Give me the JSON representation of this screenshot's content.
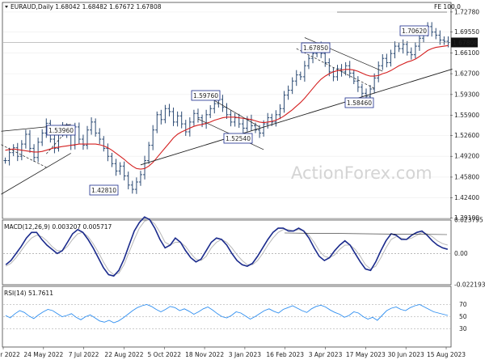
{
  "header": {
    "symbol_line": "EURAUD,Daily  1.68042 1.68482 1.67672 1.67808",
    "macd_label": "MACD(12,26,9) 0.003207 0.005717",
    "rsi_label": "RSI(14) 51.7611",
    "fe_label": "FE 100.0",
    "watermark": "ActionForex.com",
    "current_price": "1.67808"
  },
  "colors": {
    "bars": "#2b4a73",
    "ma": "#d41f1f",
    "macd": "#1a2a8c",
    "signal": "#b8b8b8",
    "rsi": "#2e8ef0",
    "trend": "#1e1e1e",
    "annot": "#1a2a8c",
    "frame": "#444444"
  },
  "chart_data": [
    {
      "type": "line",
      "panel": "price",
      "title": "EURAUD,Daily",
      "ohlc_last": {
        "open": 1.68042,
        "high": 1.68482,
        "low": 1.67672,
        "close": 1.67808
      },
      "ylim": [
        1.3905,
        1.7435
      ],
      "y_ticks": [
        "1.72780",
        "1.69550",
        "1.66100",
        "1.62700",
        "1.59300",
        "1.55900",
        "1.52600",
        "1.49200",
        "1.45800",
        "1.42400",
        "1.39100"
      ],
      "x_ticks": [
        "8 Apr 2022",
        "24 May 2022",
        "7 Jul 2022",
        "22 Aug 2022",
        "5 Oct 2022",
        "18 Nov 2022",
        "3 Jan 2023",
        "16 Feb 2023",
        "3 Apr 2023",
        "17 May 2023",
        "30 Jun 2023",
        "15 Aug 2023"
      ],
      "series": [
        {
          "kind": "ohlc_bars",
          "close": [
            1.485,
            1.498,
            1.506,
            1.492,
            1.512,
            1.528,
            1.505,
            1.49,
            1.515,
            1.53,
            1.546,
            1.52,
            1.505,
            1.532,
            1.54,
            1.528,
            1.51,
            1.54,
            1.52,
            1.51,
            1.535,
            1.548,
            1.53,
            1.52,
            1.505,
            1.492,
            1.48,
            1.468,
            1.476,
            1.46,
            1.445,
            1.438,
            1.45,
            1.462,
            1.485,
            1.51,
            1.535,
            1.56,
            1.552,
            1.57,
            1.565,
            1.548,
            1.558,
            1.545,
            1.532,
            1.548,
            1.562,
            1.555,
            1.545,
            1.56,
            1.57,
            1.578,
            1.585,
            1.572,
            1.56,
            1.548,
            1.555,
            1.545,
            1.538,
            1.552,
            1.542,
            1.535,
            1.53,
            1.545,
            1.555,
            1.548,
            1.56,
            1.57,
            1.592,
            1.6,
            1.615,
            1.625,
            1.622,
            1.64,
            1.652,
            1.66,
            1.672,
            1.66,
            1.645,
            1.63,
            1.622,
            1.635,
            1.63,
            1.64,
            1.628,
            1.615,
            1.605,
            1.595,
            1.59,
            1.602,
            1.62,
            1.64,
            1.652,
            1.645,
            1.66,
            1.672,
            1.668,
            1.675,
            1.662,
            1.658,
            1.672,
            1.685,
            1.695,
            1.704,
            1.695,
            1.69,
            1.682,
            1.68,
            1.678
          ]
        },
        {
          "kind": "moving_average",
          "values": [
            1.502,
            1.503,
            1.504,
            1.503,
            1.502,
            1.501,
            1.5,
            1.499,
            1.499,
            1.5,
            1.502,
            1.504,
            1.506,
            1.507,
            1.508,
            1.509,
            1.51,
            1.511,
            1.512,
            1.512,
            1.512,
            1.512,
            1.512,
            1.511,
            1.509,
            1.506,
            1.502,
            1.497,
            1.492,
            1.487,
            1.481,
            1.476,
            1.472,
            1.471,
            1.472,
            1.476,
            1.482,
            1.49,
            1.498,
            1.506,
            1.514,
            1.522,
            1.528,
            1.532,
            1.535,
            1.538,
            1.541,
            1.543,
            1.544,
            1.546,
            1.548,
            1.551,
            1.553,
            1.555,
            1.556,
            1.556,
            1.556,
            1.555,
            1.554,
            1.553,
            1.552,
            1.55,
            1.548,
            1.547,
            1.548,
            1.549,
            1.551,
            1.554,
            1.558,
            1.563,
            1.568,
            1.574,
            1.58,
            1.587,
            1.595,
            1.603,
            1.611,
            1.618,
            1.623,
            1.627,
            1.63,
            1.632,
            1.633,
            1.634,
            1.634,
            1.633,
            1.631,
            1.628,
            1.625,
            1.623,
            1.623,
            1.624,
            1.627,
            1.629,
            1.632,
            1.636,
            1.64,
            1.643,
            1.646,
            1.648,
            1.651,
            1.655,
            1.66,
            1.665,
            1.668,
            1.67,
            1.671,
            1.672,
            1.673
          ]
        }
      ],
      "annotations": [
        "1.53960",
        "1.42810",
        "1.59760",
        "1.52540",
        "1.67850",
        "1.58460",
        "1.70620"
      ],
      "grid": true,
      "legend": "none"
    },
    {
      "type": "line",
      "panel": "macd",
      "title": "MACD(12,26,9)",
      "ylim": [
        -0.02219,
        0.02379
      ],
      "y_ticks": [
        "0.023795",
        "0.00",
        "-0.022193"
      ],
      "series": [
        {
          "name": "MACD",
          "values": [
            -0.008,
            -0.005,
            0.0,
            0.005,
            0.011,
            0.015,
            0.015,
            0.01,
            0.006,
            0.003,
            0.0,
            0.002,
            0.008,
            0.014,
            0.017,
            0.015,
            0.01,
            0.004,
            -0.003,
            -0.01,
            -0.015,
            -0.016,
            -0.012,
            -0.004,
            0.006,
            0.016,
            0.022,
            0.026,
            0.024,
            0.018,
            0.01,
            0.004,
            0.006,
            0.011,
            0.008,
            0.002,
            -0.003,
            -0.006,
            -0.004,
            0.002,
            0.008,
            0.011,
            0.01,
            0.006,
            0.0,
            -0.005,
            -0.008,
            -0.009,
            -0.007,
            -0.002,
            0.004,
            0.01,
            0.015,
            0.018,
            0.018,
            0.016,
            0.016,
            0.018,
            0.016,
            0.011,
            0.004,
            -0.002,
            -0.005,
            -0.003,
            0.002,
            0.006,
            0.009,
            0.006,
            0.0,
            -0.006,
            -0.011,
            -0.012,
            -0.006,
            0.002,
            0.009,
            0.014,
            0.013,
            0.01,
            0.01,
            0.013,
            0.015,
            0.016,
            0.013,
            0.009,
            0.006,
            0.004,
            0.003
          ]
        },
        {
          "name": "Signal",
          "values": [
            -0.009,
            -0.007,
            -0.003,
            0.002,
            0.007,
            0.011,
            0.013,
            0.012,
            0.009,
            0.005,
            0.002,
            0.002,
            0.005,
            0.01,
            0.014,
            0.015,
            0.012,
            0.007,
            0.001,
            -0.006,
            -0.012,
            -0.015,
            -0.014,
            -0.008,
            0.001,
            0.01,
            0.018,
            0.023,
            0.024,
            0.021,
            0.015,
            0.008,
            0.006,
            0.008,
            0.008,
            0.005,
            0.0,
            -0.004,
            -0.005,
            -0.002,
            0.004,
            0.008,
            0.01,
            0.008,
            0.004,
            -0.001,
            -0.005,
            -0.008,
            -0.008,
            -0.005,
            0.0,
            0.006,
            0.011,
            0.015,
            0.017,
            0.017,
            0.016,
            0.017,
            0.016,
            0.013,
            0.008,
            0.002,
            -0.002,
            -0.003,
            -0.001,
            0.003,
            0.006,
            0.006,
            0.003,
            -0.002,
            -0.008,
            -0.011,
            -0.009,
            -0.003,
            0.004,
            0.01,
            0.012,
            0.011,
            0.01,
            0.011,
            0.013,
            0.015,
            0.014,
            0.012,
            0.009,
            0.007,
            0.006
          ]
        }
      ],
      "grid": true,
      "legend": "none"
    },
    {
      "type": "line",
      "panel": "rsi",
      "title": "RSI(14)",
      "ylim": [
        0,
        100
      ],
      "y_ticks": [
        "70",
        "50",
        "30"
      ],
      "series": [
        {
          "name": "RSI(14)",
          "values": [
            52,
            48,
            55,
            60,
            57,
            51,
            47,
            53,
            58,
            62,
            60,
            55,
            50,
            52,
            55,
            49,
            45,
            50,
            53,
            48,
            43,
            41,
            44,
            40,
            43,
            48,
            54,
            60,
            65,
            68,
            70,
            67,
            62,
            58,
            62,
            67,
            65,
            60,
            63,
            59,
            54,
            58,
            63,
            66,
            61,
            55,
            50,
            48,
            52,
            58,
            56,
            51,
            46,
            50,
            55,
            60,
            63,
            59,
            56,
            62,
            65,
            68,
            64,
            60,
            57,
            63,
            67,
            69,
            66,
            61,
            57,
            54,
            49,
            52,
            58,
            56,
            50,
            46,
            49,
            44,
            52,
            60,
            64,
            66,
            62,
            60,
            65,
            68,
            70,
            66,
            62,
            58,
            56,
            54,
            52
          ]
        }
      ],
      "grid": true,
      "legend": "none"
    }
  ]
}
